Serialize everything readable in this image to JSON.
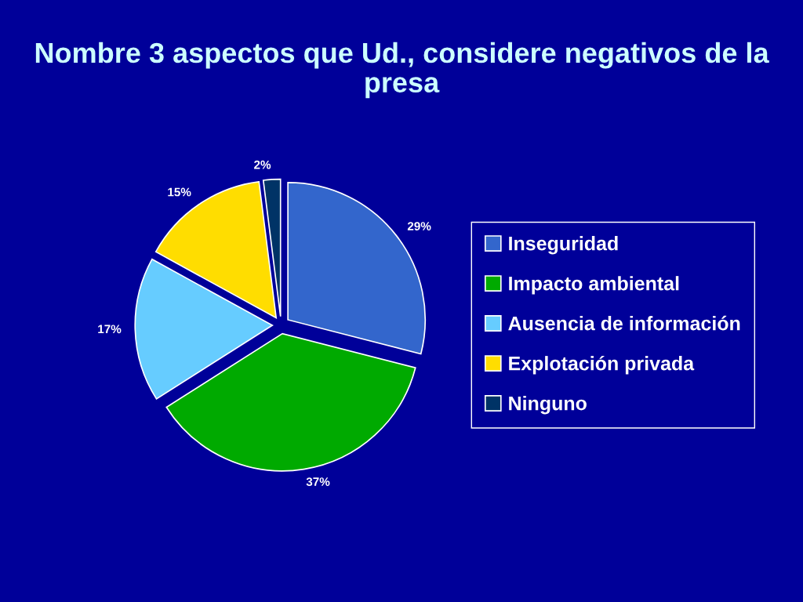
{
  "chart_data": {
    "type": "pie",
    "title": "Nombre 3 aspectos que Ud., considere negativos de la presa",
    "categories": [
      "Inseguridad",
      "Impacto ambiental",
      "Ausencia de información",
      "Explotación privada",
      "Ninguno"
    ],
    "values": [
      29,
      37,
      17,
      15,
      2
    ],
    "colors": [
      "#3366cc",
      "#00aa00",
      "#66ccff",
      "#ffdd00",
      "#003366"
    ],
    "value_labels": [
      "29%",
      "37%",
      "17%",
      "15%",
      "2%"
    ],
    "legend": "right"
  }
}
